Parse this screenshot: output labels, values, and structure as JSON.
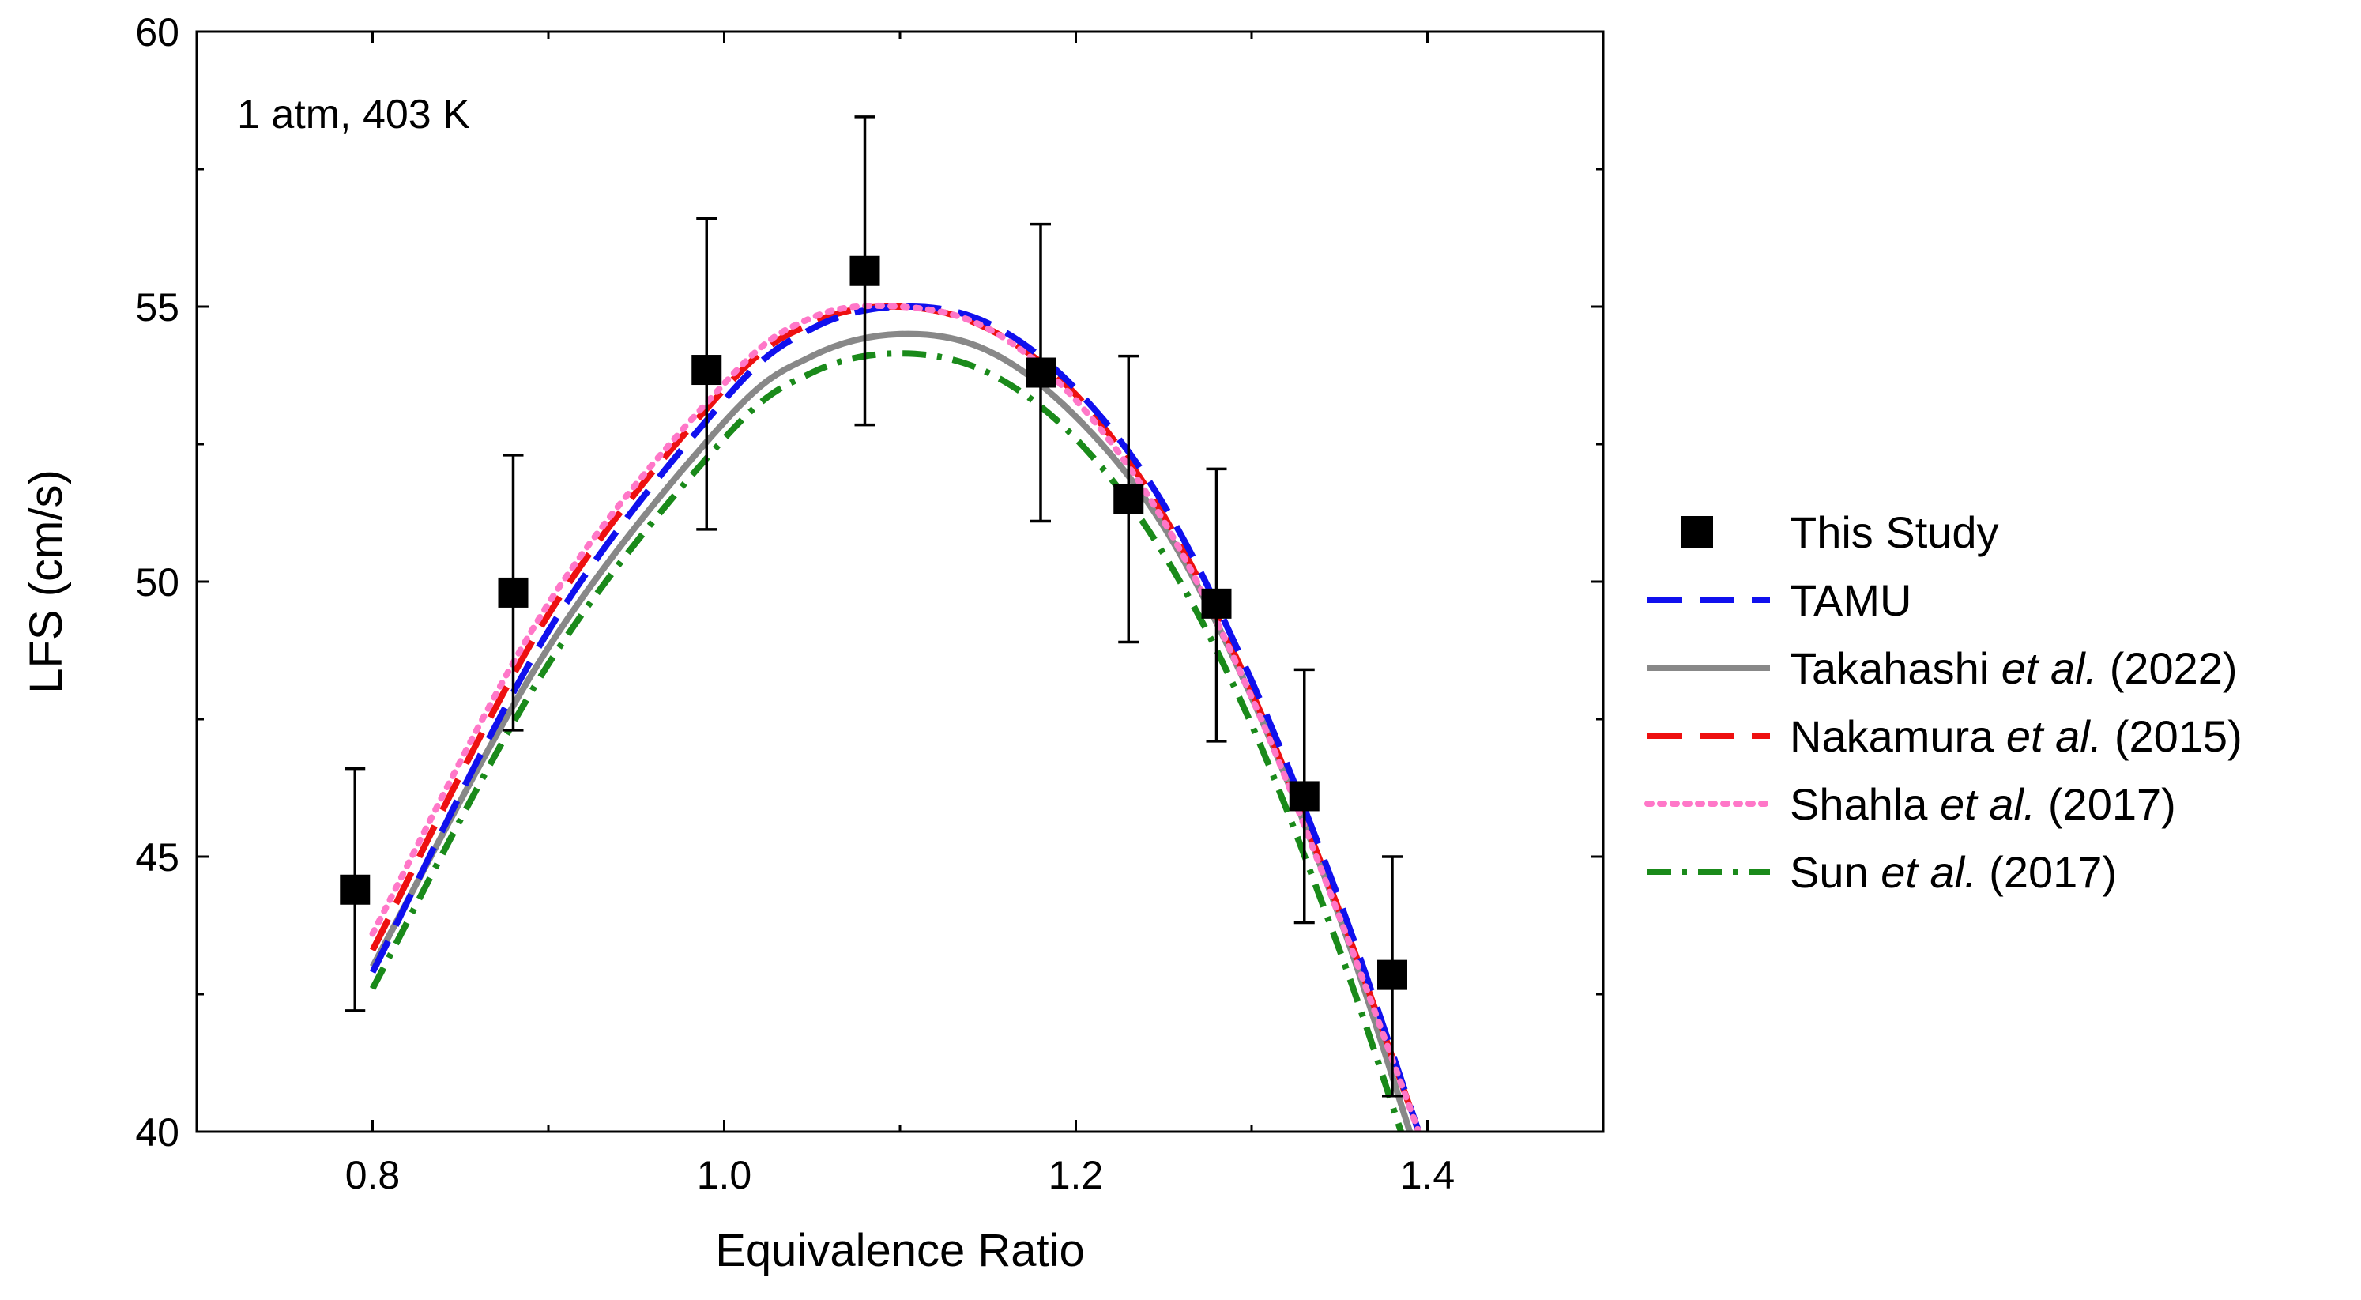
{
  "chart_data": {
    "type": "line",
    "annotation": "1 atm, 403 K",
    "xlabel": "Equivalence Ratio",
    "ylabel": "LFS (cm/s)",
    "xlim": [
      0.7,
      1.5
    ],
    "ylim": [
      40,
      60
    ],
    "x_ticks": [
      0.8,
      1.0,
      1.2,
      1.4
    ],
    "x_tick_labels": [
      "0.8",
      "1.0",
      "1.2",
      "1.4"
    ],
    "y_ticks": [
      40,
      45,
      50,
      55,
      60
    ],
    "y_tick_labels": [
      "40",
      "45",
      "50",
      "55",
      "60"
    ],
    "grid": false,
    "legend_position": "right, outside plot",
    "experiment": {
      "name": "This Study",
      "color": "#000000",
      "x": [
        0.79,
        0.88,
        0.99,
        1.08,
        1.18,
        1.23,
        1.28,
        1.33,
        1.38
      ],
      "y": [
        44.4,
        49.8,
        53.85,
        55.65,
        53.8,
        51.5,
        49.6,
        46.1,
        42.85
      ],
      "err_low": [
        2.2,
        2.5,
        2.9,
        2.8,
        2.7,
        2.6,
        2.5,
        2.3,
        2.2
      ],
      "err_high": [
        2.2,
        2.5,
        2.75,
        2.8,
        2.7,
        2.6,
        2.45,
        2.3,
        2.15
      ]
    },
    "series": [
      {
        "name": "TAMU",
        "name_parts": [
          "TAMU",
          "",
          ""
        ],
        "color": "#1010ee",
        "dash": "dash",
        "x": [
          0.8,
          0.9,
          1.0,
          1.05,
          1.1,
          1.15,
          1.2,
          1.25,
          1.3,
          1.35,
          1.395
        ],
        "y": [
          42.9,
          49.1,
          53.3,
          54.6,
          55.0,
          54.7,
          53.5,
          51.4,
          48.2,
          44.2,
          40.0
        ]
      },
      {
        "name": "Takahashi et al. (2022)",
        "name_parts": [
          "Takahashi ",
          "et al.",
          " (2022)"
        ],
        "color": "#888888",
        "dash": "solid",
        "x": [
          0.8,
          0.9,
          1.0,
          1.05,
          1.1,
          1.15,
          1.2,
          1.25,
          1.3,
          1.35,
          1.39
        ],
        "y": [
          43.0,
          48.8,
          52.9,
          54.1,
          54.5,
          54.2,
          53.0,
          51.0,
          47.9,
          43.9,
          40.0
        ]
      },
      {
        "name": "Nakamura et al. (2015)",
        "name_parts": [
          "Nakamura ",
          "et al.",
          " (2015)"
        ],
        "color": "#ee1010",
        "dash": "dash",
        "x": [
          0.8,
          0.9,
          1.0,
          1.05,
          1.1,
          1.15,
          1.2,
          1.25,
          1.3,
          1.35,
          1.395
        ],
        "y": [
          43.3,
          49.4,
          53.5,
          54.7,
          55.0,
          54.6,
          53.4,
          51.2,
          48.0,
          44.0,
          40.0
        ]
      },
      {
        "name": "Shahla et al. (2017)",
        "name_parts": [
          "Shahla ",
          "et al.",
          " (2017)"
        ],
        "color": "#ff77c8",
        "dash": "dot",
        "x": [
          0.8,
          0.9,
          1.0,
          1.05,
          1.1,
          1.15,
          1.2,
          1.25,
          1.3,
          1.35,
          1.395
        ],
        "y": [
          43.6,
          49.6,
          53.6,
          54.8,
          55.0,
          54.6,
          53.3,
          51.1,
          47.9,
          43.9,
          40.0
        ]
      },
      {
        "name": "Sun et al. (2017)",
        "name_parts": [
          "Sun ",
          "et al.",
          " (2017)"
        ],
        "color": "#1a8a1a",
        "dash": "dashdot",
        "x": [
          0.8,
          0.9,
          1.0,
          1.05,
          1.1,
          1.15,
          1.2,
          1.25,
          1.3,
          1.35,
          1.385
        ],
        "y": [
          42.6,
          48.5,
          52.6,
          53.8,
          54.15,
          53.8,
          52.6,
          50.5,
          47.4,
          43.3,
          40.0
        ]
      }
    ]
  }
}
